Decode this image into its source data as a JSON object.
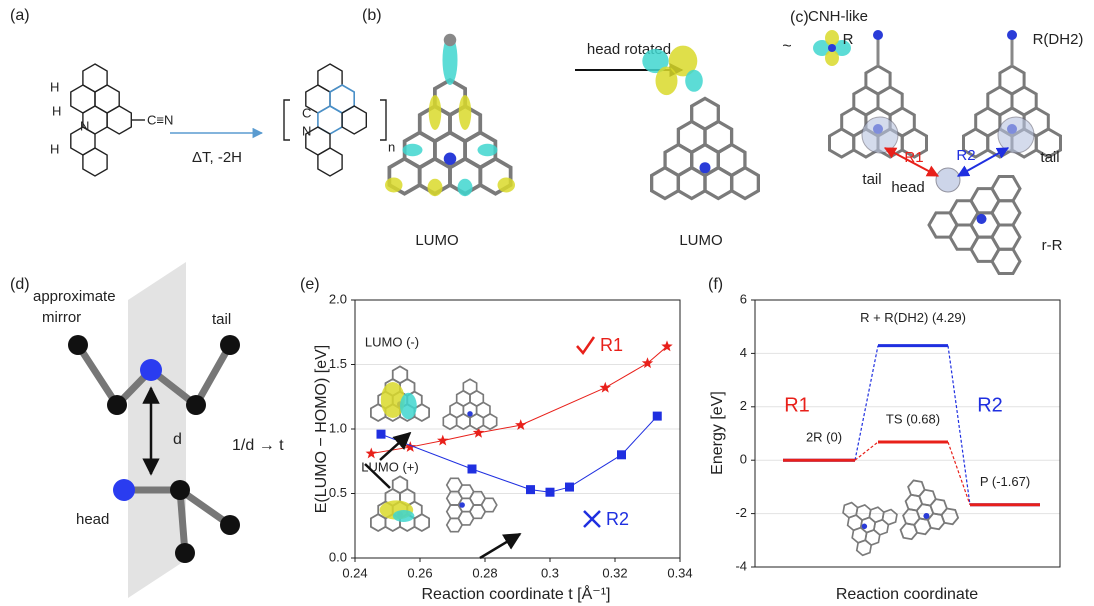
{
  "panels": {
    "a": {
      "label": "(a)",
      "condition": "ΔT, -2H",
      "repeat": "n",
      "atoms_left": [
        "H",
        "H",
        "N",
        "H",
        "C≡N"
      ],
      "atoms_right": [
        "C",
        "N"
      ]
    },
    "b": {
      "label": "(b)",
      "arrow": "head rotated",
      "similar": "~",
      "fragment": "CNH-like",
      "orbital_left": "LUMO",
      "orbital_right": "LUMO"
    },
    "c": {
      "label": "(c)",
      "left": "R",
      "right": "R(DH2)",
      "bottom": "r-R",
      "route1": "R1",
      "route2": "R2",
      "tail_left": "tail",
      "tail_right": "tail",
      "head": "head"
    },
    "d": {
      "label": "(d)",
      "plane_line1": "approximate",
      "plane_line2": "mirror",
      "tail": "tail",
      "head": "head",
      "distance": "d",
      "relation": "1/d → t"
    }
  },
  "chart_data": [
    {
      "type": "line",
      "panel_label": "(e)",
      "xlabel": "Reaction coordinate t [Å⁻¹]",
      "ylabel": "E(LUMO − HOMO) [eV]",
      "xlim": [
        0.24,
        0.34
      ],
      "xticks": [
        0.24,
        0.26,
        0.28,
        0.3,
        0.32,
        0.34
      ],
      "ylim": [
        0,
        2
      ],
      "yticks": [
        {
          "value": 0,
          "label": "0.0"
        },
        {
          "value": 0.5,
          "label": "0.5"
        },
        {
          "value": 1,
          "label": "1.0"
        },
        {
          "value": 1.5,
          "label": "1.5"
        },
        {
          "value": 2,
          "label": "2.0"
        }
      ],
      "grid": true,
      "annotations": [
        "LUMO (-)",
        "LUMO (+)"
      ],
      "series": [
        {
          "name": "R1",
          "color": "#e8201a",
          "marker": "star",
          "x": [
            0.245,
            0.257,
            0.267,
            0.278,
            0.291,
            0.317,
            0.33,
            0.336
          ],
          "values": [
            0.81,
            0.86,
            0.91,
            0.97,
            1.03,
            1.32,
            1.51,
            1.64
          ]
        },
        {
          "name": "R2",
          "color": "#1f2fe0",
          "marker": "square",
          "x": [
            0.248,
            0.276,
            0.294,
            0.3,
            0.306,
            0.322,
            0.333
          ],
          "values": [
            0.96,
            0.69,
            0.53,
            0.51,
            0.55,
            0.8,
            1.1
          ]
        }
      ]
    },
    {
      "type": "levels",
      "panel_label": "(f)",
      "xlabel": "Reaction coordinate",
      "ylabel": "Energy [eV]",
      "ylim": [
        -4,
        6
      ],
      "yticks": [
        -4,
        -2,
        0,
        2,
        4,
        6
      ],
      "grid": true,
      "series": [
        {
          "name": "R2",
          "color": "#1f2fe0",
          "values": [
            0,
            4.29,
            -1.67
          ],
          "value_labels": [
            null,
            "R + R(DH2) (4.29)",
            null
          ]
        },
        {
          "name": "R1",
          "color": "#e8201a",
          "values": [
            0,
            0.68,
            -1.67
          ],
          "value_labels": [
            "2R (0)",
            "TS (0.68)",
            "P (-1.67)"
          ]
        }
      ]
    }
  ]
}
